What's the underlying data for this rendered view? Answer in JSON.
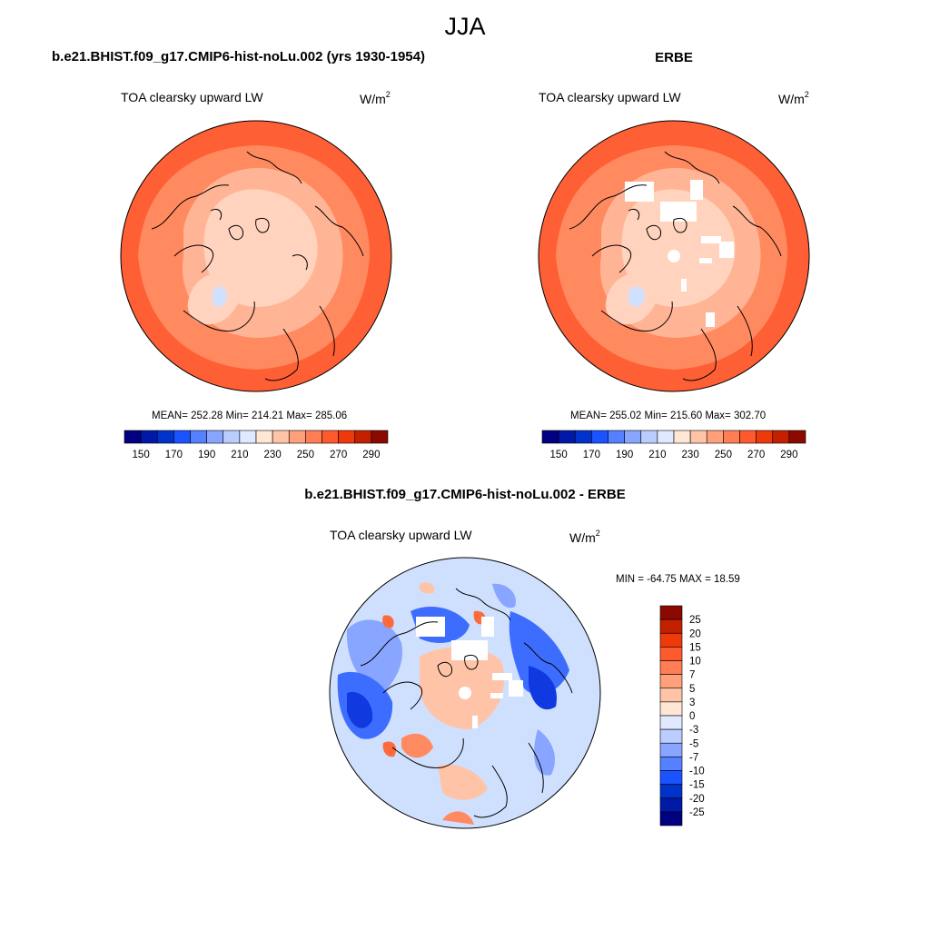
{
  "figure_title": "JJA",
  "panels": [
    {
      "title": "b.e21.BHIST.f09_g17.CMIP6-hist-noLu.002 (yrs 1930-1954)",
      "variable": "TOA clearsky upward LW",
      "units_base": "W/m",
      "units_sup": "2",
      "stats": "MEAN= 252.28  Min= 214.21  Max= 285.06",
      "mean": 252.28,
      "min": 214.21,
      "max": 285.06
    },
    {
      "title": "ERBE",
      "variable": "TOA clearsky upward LW",
      "units_base": "W/m",
      "units_sup": "2",
      "stats": "MEAN= 255.02  Min= 215.60  Max= 302.70",
      "mean": 255.02,
      "min": 215.6,
      "max": 302.7
    },
    {
      "title": "b.e21.BHIST.f09_g17.CMIP6-hist-noLu.002 - ERBE",
      "variable": "TOA clearsky upward LW",
      "units_base": "W/m",
      "units_sup": "2",
      "stats": "MIN = -64.75 MAX =  18.59",
      "min": -64.75,
      "max": 18.59
    }
  ],
  "colorbar_abs": {
    "labels": [
      "150",
      "170",
      "190",
      "210",
      "230",
      "250",
      "270",
      "290"
    ],
    "colors": [
      "#000080",
      "#0019a6",
      "#0033cc",
      "#1a53ff",
      "#5580ff",
      "#88a6ff",
      "#bbccff",
      "#e0e9ff",
      "#ffe6d5",
      "#ffc4a8",
      "#ffa07a",
      "#ff7d55",
      "#ff5a2d",
      "#ee3a0a",
      "#c42000",
      "#8a0a00"
    ]
  },
  "colorbar_diff": {
    "labels": [
      "25",
      "20",
      "15",
      "10",
      "7",
      "5",
      "3",
      "0",
      "-3",
      "-5",
      "-7",
      "-10",
      "-15",
      "-20",
      "-25"
    ],
    "colors": [
      "#8a0a00",
      "#c42000",
      "#ee3a0a",
      "#ff5a2d",
      "#ff7d55",
      "#ffa07a",
      "#ffc4a8",
      "#ffe6d5",
      "#e0e9ff",
      "#bbccff",
      "#88a6ff",
      "#5580ff",
      "#1a53ff",
      "#0033cc",
      "#0019a6",
      "#000080"
    ]
  },
  "map_colors": {
    "outer": "#ff5f34",
    "mid": "#ff8a60",
    "light": "#ffb495",
    "pale": "#ffd3bd",
    "greenland": "#cfe0ff",
    "diff_base": "#cfe0ff",
    "diff_blue": "#3d6dff",
    "diff_dark": "#1039e0",
    "diff_red": "#ffb08a",
    "diff_strong_red": "#ff6a3a"
  }
}
